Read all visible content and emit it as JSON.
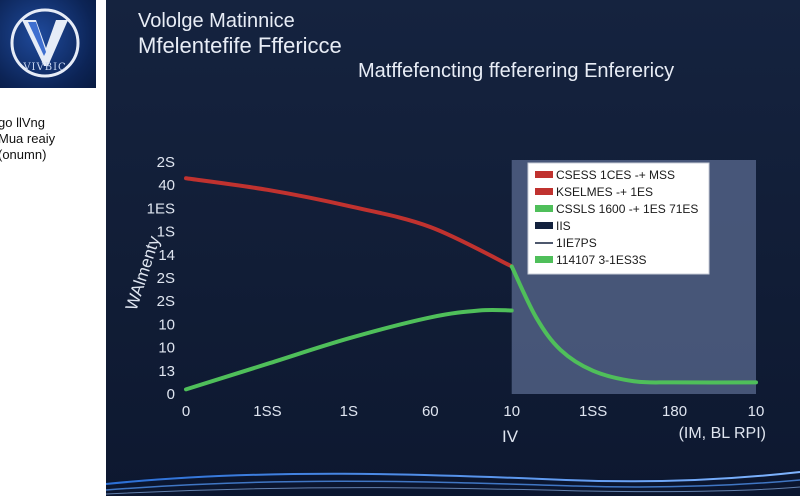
{
  "logo": {
    "text": "VIVBIC",
    "color": "#163a84"
  },
  "side_text": [
    "go llVng",
    "Mua reaiy",
    "(onumn)"
  ],
  "header": {
    "title_line1": "Vololge Matinnice",
    "title_line2": "Mfelentefife Fffericce",
    "subtitle": "Matffefencting  ffeferering Enferericy"
  },
  "colors": {
    "background": "#13213d",
    "red": "#c0322f",
    "green": "#4fbf5a",
    "shade": "#5a6a8f"
  },
  "chart_data": {
    "type": "line",
    "x_tick_labels": [
      "0",
      "1SS",
      "1S",
      "60",
      "10",
      "1SS",
      "180",
      "10"
    ],
    "y_tick_labels": [
      "0",
      "13",
      "10",
      "10",
      "2S",
      "2S",
      "14",
      "1S",
      "1ES",
      "40",
      "2S"
    ],
    "x_range": [
      0,
      7
    ],
    "y_range": [
      0,
      10
    ],
    "xlabel": "IV",
    "xlabel_right": "(IM, BL RPI)",
    "ylabel": "WAlmenty",
    "shaded_region": {
      "x_start": 4,
      "x_end": 7
    },
    "series": [
      {
        "color": "#c0322f",
        "points": [
          [
            0,
            9.3
          ],
          [
            1,
            8.8
          ],
          [
            2,
            8.1
          ],
          [
            3,
            7.2
          ],
          [
            4,
            5.5
          ]
        ]
      },
      {
        "color": "#4fbf5a",
        "points": [
          [
            0,
            0.2
          ],
          [
            1,
            1.3
          ],
          [
            2,
            2.4
          ],
          [
            3,
            3.3
          ],
          [
            3.6,
            3.6
          ],
          [
            4,
            3.6
          ]
        ]
      },
      {
        "color": "#4fbf5a",
        "points": [
          [
            4,
            5.5
          ],
          [
            4.3,
            3.3
          ],
          [
            4.6,
            1.9
          ],
          [
            5,
            1.0
          ],
          [
            5.5,
            0.55
          ],
          [
            6,
            0.5
          ],
          [
            7,
            0.5
          ]
        ]
      }
    ],
    "legend": {
      "position": "top-right",
      "entries": [
        {
          "label": "CSESS 1CES  -+ MSS",
          "color": "#c0322f",
          "style": "bar"
        },
        {
          "label": "KSELMES  -+ 1ES",
          "color": "#c0322f",
          "style": "bar"
        },
        {
          "label": "CSSLS 1600  -+  1ES 71ES",
          "color": "#4fbf5a",
          "style": "bar"
        },
        {
          "label": "IIS",
          "color": "#13213d",
          "style": "bar"
        },
        {
          "label": "1IE7PS",
          "color": "#13213d",
          "style": "line"
        },
        {
          "label": "114107  3-1ES3S",
          "color": "#4fbf5a",
          "style": "bar"
        }
      ]
    }
  }
}
